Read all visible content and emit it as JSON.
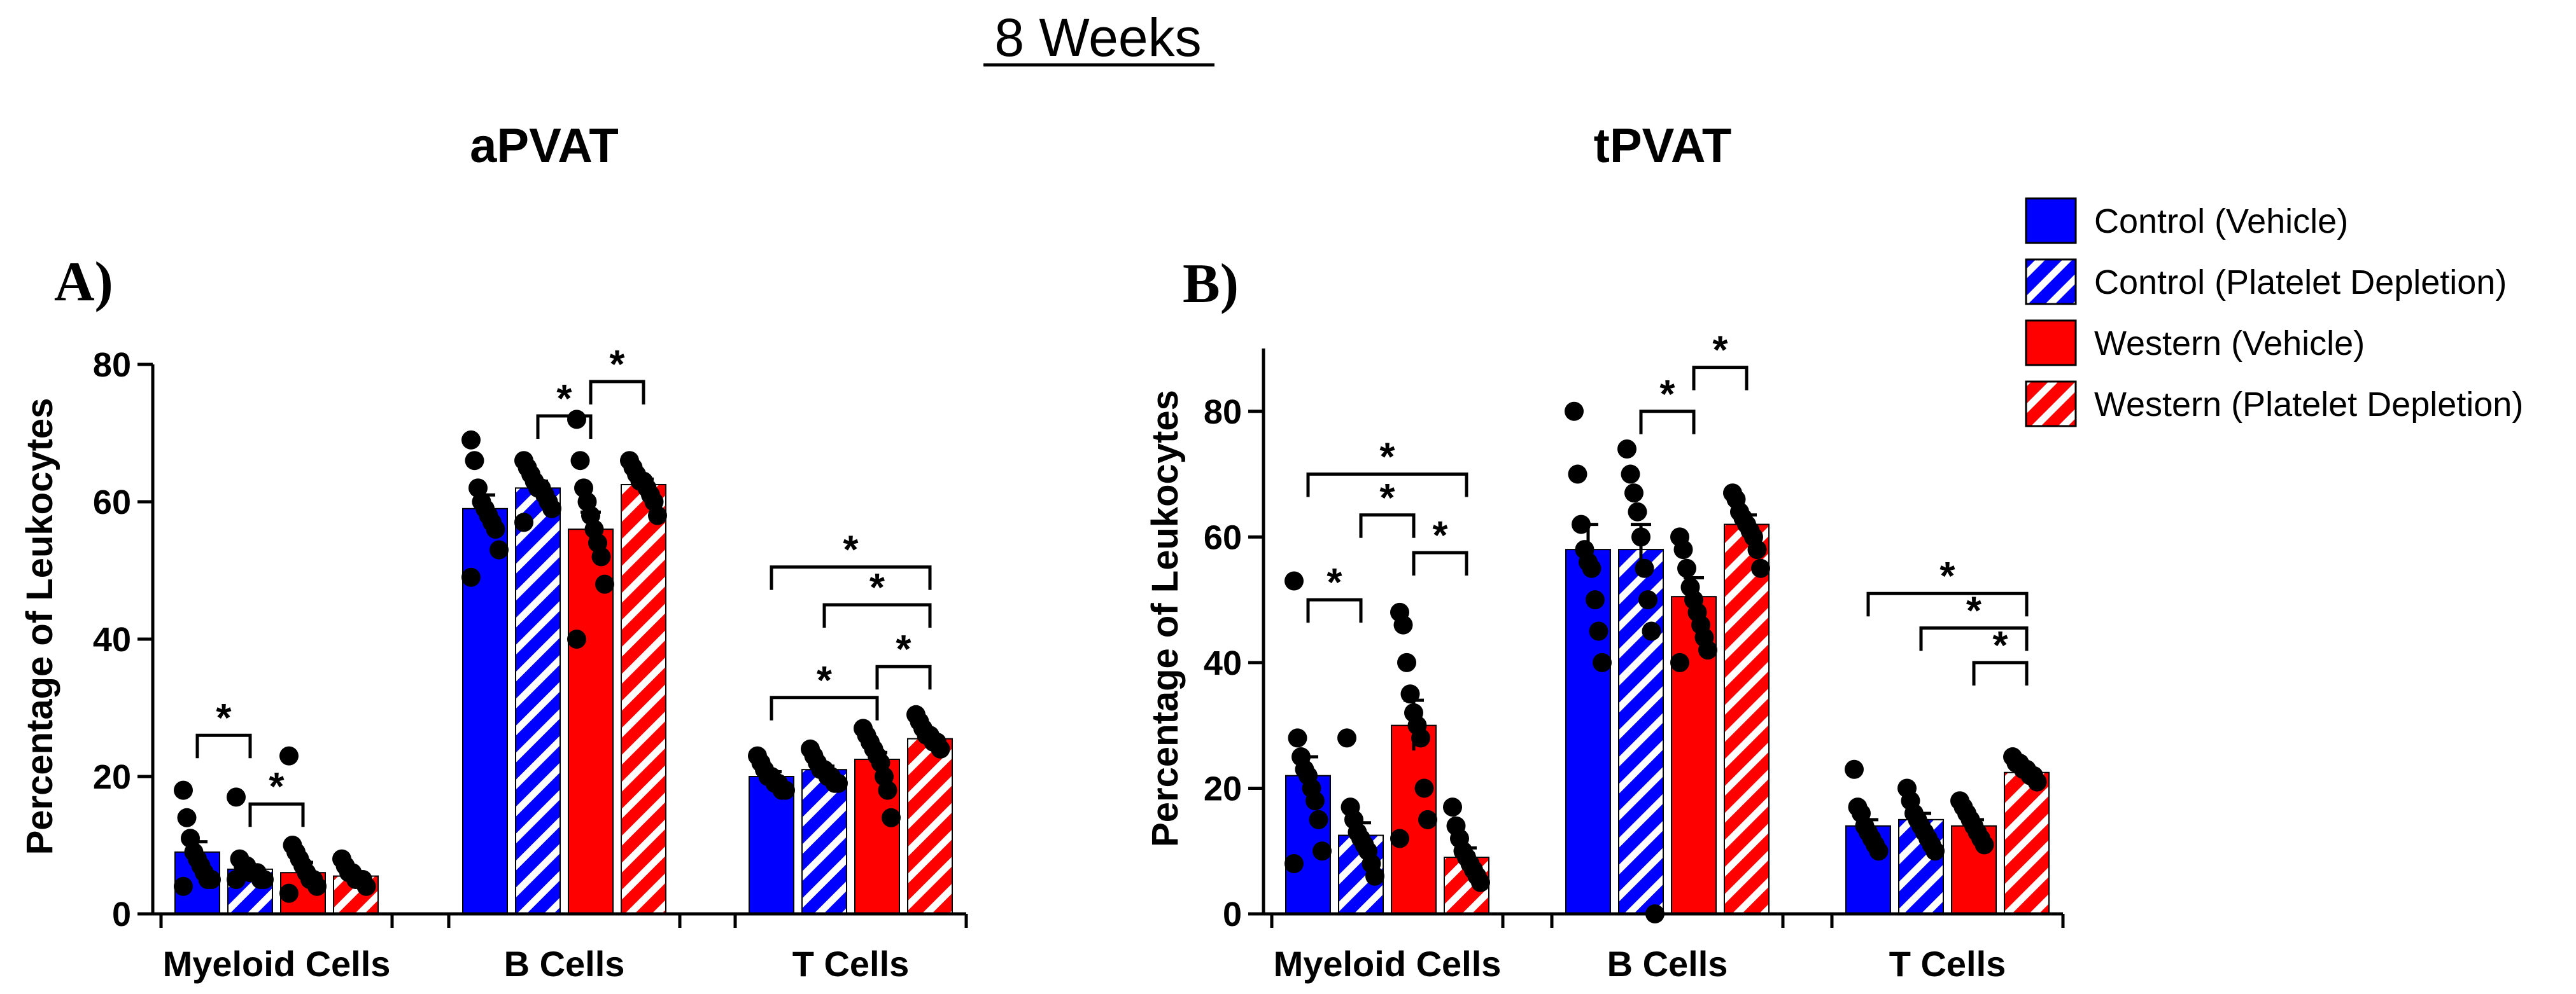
{
  "figure": {
    "title": "8 Weeks"
  },
  "colors": {
    "control": "#0000ff",
    "western": "#ff0000",
    "stripe": "#ffffff",
    "outline": "#000000",
    "point": "#000000"
  },
  "legend": {
    "position": "right",
    "entries": [
      {
        "label": "Control (Vehicle)",
        "color": "#0000ff",
        "hatched": false
      },
      {
        "label": "Control (Platelet Depletion)",
        "color": "#0000ff",
        "hatched": true
      },
      {
        "label": "Western (Vehicle)",
        "color": "#ff0000",
        "hatched": false
      },
      {
        "label": "Western (Platelet Depletion)",
        "color": "#ff0000",
        "hatched": true
      }
    ]
  },
  "chart_data": [
    {
      "type": "bar",
      "panel": "A)",
      "title": "aPVAT",
      "ylabel": "Percentage of Leukocytes",
      "ylim": [
        0,
        80
      ],
      "yticks": [
        0,
        20,
        40,
        60,
        80
      ],
      "categories": [
        "Myeloid Cells",
        "B Cells",
        "T Cells"
      ],
      "series": [
        {
          "name": "Control (Vehicle)",
          "values": [
            9,
            59,
            20
          ],
          "sem": [
            1.5,
            2,
            0.7
          ],
          "points": [
            [
              18,
              14,
              11,
              9,
              8,
              7,
              6,
              5,
              5,
              4
            ],
            [
              69,
              66,
              62,
              60,
              59,
              58,
              57,
              56,
              53,
              49
            ],
            [
              23,
              22,
              21,
              20,
              20,
              19,
              19,
              18,
              18
            ]
          ]
        },
        {
          "name": "Control (Platelet Depletion)",
          "values": [
            6.5,
            62,
            21
          ],
          "sem": [
            0.6,
            1,
            0.5
          ],
          "points": [
            [
              17,
              8,
              7,
              7,
              6,
              6,
              6,
              5,
              5,
              5
            ],
            [
              66,
              65,
              64,
              63,
              62,
              62,
              61,
              60,
              59,
              57
            ],
            [
              24,
              23,
              22,
              21,
              21,
              20,
              20,
              19,
              19
            ]
          ]
        },
        {
          "name": "Western (Vehicle)",
          "values": [
            6,
            56,
            22.5
          ],
          "sem": [
            1.5,
            2.5,
            1
          ],
          "points": [
            [
              23,
              10,
              9,
              8,
              7,
              6,
              5,
              5,
              4,
              3
            ],
            [
              72,
              66,
              62,
              60,
              58,
              56,
              54,
              52,
              48,
              40
            ],
            [
              27,
              26,
              25,
              24,
              23,
              22,
              20,
              18,
              14
            ]
          ]
        },
        {
          "name": "Western (Platelet Depletion)",
          "values": [
            5.5,
            62.5,
            25.5
          ],
          "sem": [
            0.5,
            0.8,
            0.6
          ],
          "points": [
            [
              8,
              7,
              6,
              6,
              5,
              5,
              5,
              4
            ],
            [
              66,
              65,
              64,
              63,
              63,
              62,
              61,
              60,
              58
            ],
            [
              29,
              28,
              27,
              26,
              26,
              25,
              25,
              24
            ]
          ]
        }
      ],
      "significance": [
        {
          "category": 0,
          "from": 0,
          "to": 1,
          "y": 26,
          "label": "*"
        },
        {
          "category": 0,
          "from": 1,
          "to": 2,
          "y": 16,
          "label": "*"
        },
        {
          "category": 1,
          "from": 1,
          "to": 2,
          "y": 72.5,
          "label": "*"
        },
        {
          "category": 1,
          "from": 2,
          "to": 3,
          "y": 77.5,
          "label": "*"
        },
        {
          "category": 2,
          "from": 0,
          "to": 2,
          "y": 31.5,
          "label": "*"
        },
        {
          "category": 2,
          "from": 2,
          "to": 3,
          "y": 36,
          "label": "*"
        },
        {
          "category": 2,
          "from": 1,
          "to": 3,
          "y": 45,
          "label": "*"
        },
        {
          "category": 2,
          "from": 0,
          "to": 3,
          "y": 50.5,
          "label": "*"
        }
      ]
    },
    {
      "type": "bar",
      "panel": "B)",
      "title": "tPVAT",
      "ylabel": "Percentage of Leukocytes",
      "ylim": [
        0,
        90
      ],
      "yticks": [
        0,
        20,
        40,
        60,
        80
      ],
      "categories": [
        "Myeloid Cells",
        "B Cells",
        "T Cells"
      ],
      "series": [
        {
          "name": "Control (Vehicle)",
          "values": [
            22,
            58,
            14
          ],
          "sem": [
            3,
            4,
            1
          ],
          "points": [
            [
              53,
              28,
              25,
              23,
              22,
              20,
              18,
              15,
              10,
              8
            ],
            [
              80,
              70,
              62,
              58,
              56,
              55,
              50,
              45,
              40
            ],
            [
              23,
              17,
              16,
              14,
              13,
              12,
              11,
              10
            ]
          ]
        },
        {
          "name": "Control (Platelet Depletion)",
          "values": [
            12.5,
            58,
            15
          ],
          "sem": [
            2,
            4,
            1
          ],
          "points": [
            [
              28,
              17,
              15,
              13,
              12,
              11,
              10,
              8,
              6
            ],
            [
              74,
              70,
              67,
              64,
              60,
              55,
              50,
              45,
              0
            ],
            [
              20,
              18,
              16,
              15,
              14,
              13,
              12,
              11,
              10
            ]
          ]
        },
        {
          "name": "Western (Vehicle)",
          "values": [
            30,
            50.5,
            14
          ],
          "sem": [
            4,
            3,
            1
          ],
          "points": [
            [
              48,
              46,
              40,
              35,
              32,
              30,
              28,
              20,
              15,
              12
            ],
            [
              60,
              58,
              55,
              52,
              50,
              48,
              46,
              44,
              42,
              40
            ],
            [
              18,
              17,
              16,
              15,
              14,
              13,
              12,
              11
            ]
          ]
        },
        {
          "name": "Western (Platelet Depletion)",
          "values": [
            9,
            62,
            22.5
          ],
          "sem": [
            1.5,
            1.5,
            0.6
          ],
          "points": [
            [
              17,
              14,
              12,
              10,
              9,
              8,
              7,
              6,
              5
            ],
            [
              67,
              66,
              64,
              63,
              62,
              61,
              60,
              58,
              55
            ],
            [
              25,
              24,
              24,
              23,
              23,
              22,
              22,
              21
            ]
          ]
        }
      ],
      "significance": [
        {
          "category": 0,
          "from": 0,
          "to": 1,
          "y": 50,
          "label": "*"
        },
        {
          "category": 0,
          "from": 2,
          "to": 3,
          "y": 57.5,
          "label": "*"
        },
        {
          "category": 0,
          "from": 1,
          "to": 2,
          "y": 63.5,
          "label": "*"
        },
        {
          "category": 0,
          "from": 0,
          "to": 3,
          "y": 70,
          "label": "*"
        },
        {
          "category": 1,
          "from": 1,
          "to": 2,
          "y": 80,
          "label": "*"
        },
        {
          "category": 1,
          "from": 2,
          "to": 3,
          "y": 87,
          "label": "*"
        },
        {
          "category": 2,
          "from": 2,
          "to": 3,
          "y": 40,
          "label": "*"
        },
        {
          "category": 2,
          "from": 1,
          "to": 3,
          "y": 45.5,
          "label": "*"
        },
        {
          "category": 2,
          "from": 0,
          "to": 3,
          "y": 51,
          "label": "*"
        }
      ]
    }
  ]
}
